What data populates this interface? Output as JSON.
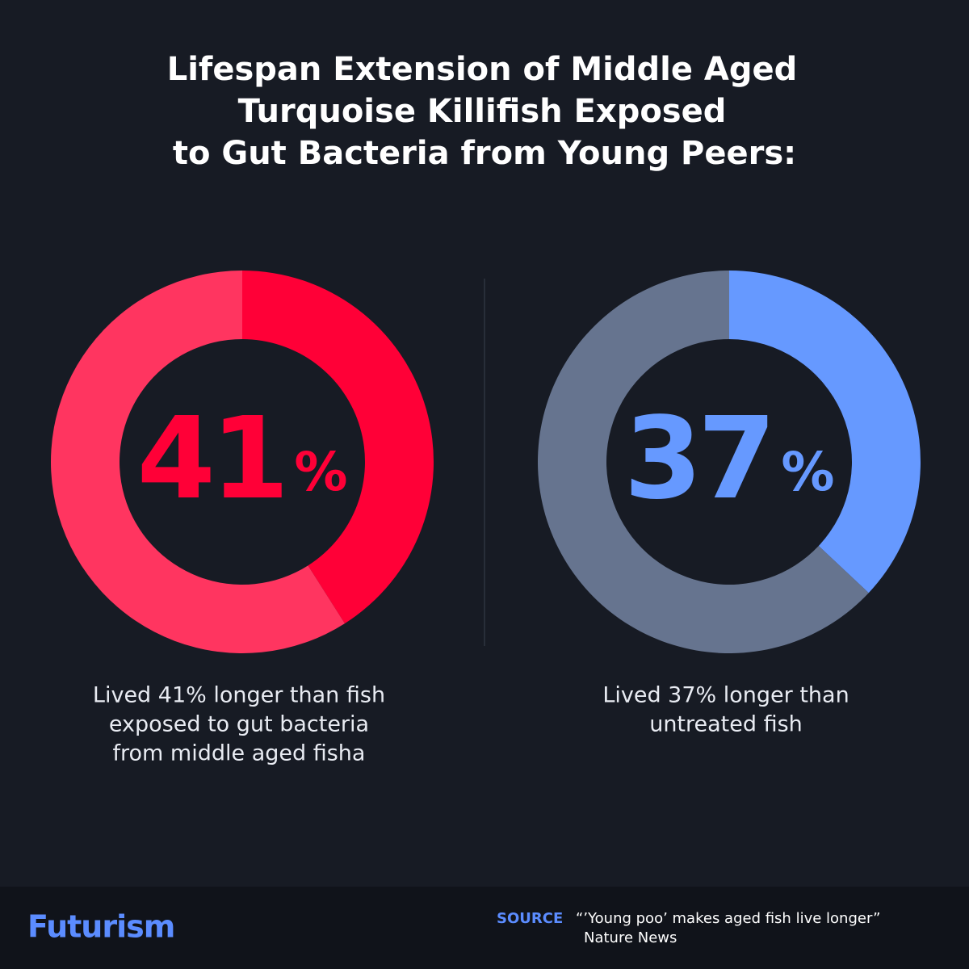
{
  "header": {
    "title": [
      "Lifespan Extension of Middle Aged",
      "Turquoise Killifish Exposed",
      "to Gut Bacteria from Young Peers:"
    ]
  },
  "chart_data": [
    {
      "type": "donut",
      "values": [
        41,
        59
      ],
      "value_labels": [
        "41%",
        null
      ],
      "colors": [
        "#ff0037",
        "#ff3560"
      ],
      "caption": [
        "Lived 41% longer than fish",
        "exposed to gut bacteria",
        "from middle aged fisha"
      ]
    },
    {
      "type": "donut",
      "values": [
        37,
        63
      ],
      "value_labels": [
        "37%",
        null
      ],
      "colors": [
        "#6699ff",
        "#66748f"
      ],
      "caption": [
        "Lived 37% longer than",
        "untreated fish"
      ]
    }
  ],
  "footer": {
    "brand": "Futurism",
    "source_label": "SOURCE",
    "source": "“’Young poo’ makes aged fish live longer”",
    "publisher": "Nature News"
  }
}
